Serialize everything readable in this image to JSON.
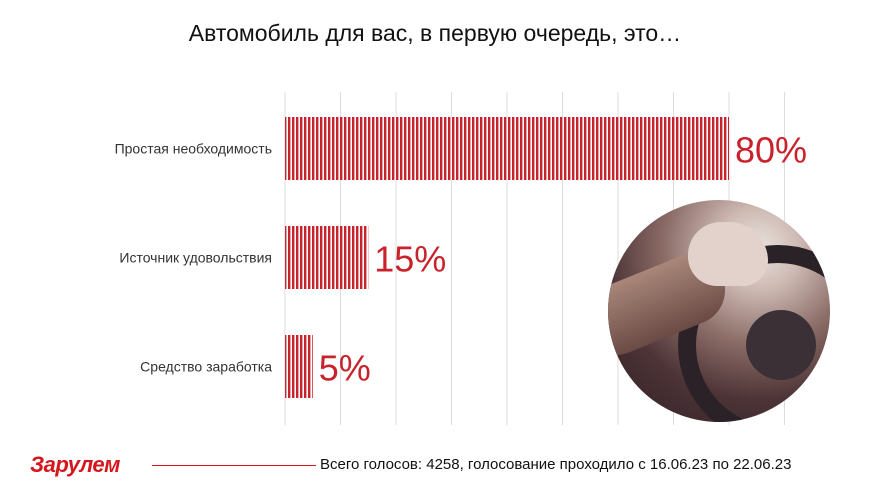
{
  "chart_data": {
    "type": "bar",
    "orientation": "horizontal",
    "title": "Автомобиль для вас, в первую очередь, это…",
    "categories": [
      "Простая необходимость",
      "Источник удовольствия",
      "Средство заработка"
    ],
    "values": [
      80,
      15,
      5
    ],
    "value_labels": [
      "80%",
      "15%",
      "5%"
    ],
    "xlim": [
      0,
      90
    ],
    "grid": true,
    "bar_color": "#c8222a"
  },
  "footer": {
    "logo": "За рулем",
    "text": "Всего голосов: 4258, голосование проходило с 16.06.23 по 22.06.23"
  }
}
